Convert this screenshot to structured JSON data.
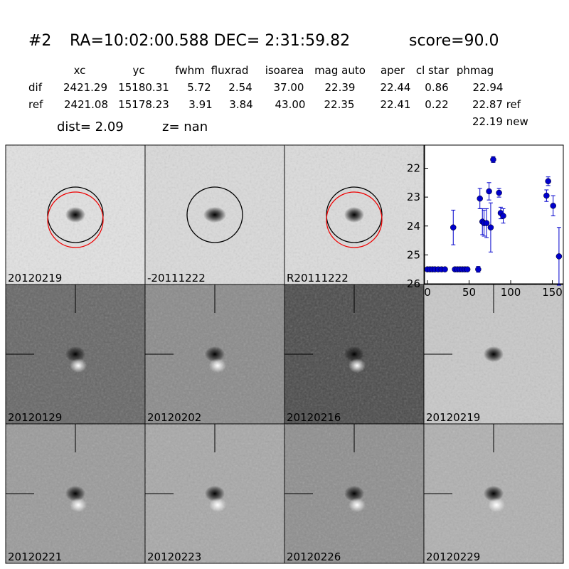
{
  "header": {
    "id": "#2",
    "coords": "RA=10:02:00.588 DEC= 2:31:59.82",
    "score": "score=90.0"
  },
  "table": {
    "columns": [
      "xc",
      "yc",
      "fwhm",
      "fluxrad",
      "isoarea",
      "mag auto",
      "aper",
      "cl star",
      "phmag"
    ],
    "rows": [
      [
        "dif",
        "2421.29",
        "15180.31",
        "5.72",
        "2.54",
        "37.00",
        "22.39",
        "22.44",
        "0.86",
        "22.94"
      ],
      [
        "ref",
        "2421.08",
        "15178.23",
        "3.91",
        "3.84",
        "43.00",
        "22.35",
        "22.41",
        "0.22",
        "22.87 ref"
      ]
    ],
    "extra": "22.19 new",
    "dist": "dist=  2.09",
    "z": "z=   nan"
  },
  "stamps": [
    "20120219",
    "-20111222",
    "R20111222",
    "20120129",
    "20120202",
    "20120216",
    "20120219",
    "20120221",
    "20120223",
    "20120226",
    "20120229"
  ],
  "chart_data": {
    "type": "scatter",
    "color": "#0000cc",
    "x": [
      0,
      3,
      6,
      9,
      13,
      17,
      21,
      31,
      33,
      36,
      39,
      42,
      45,
      48,
      61,
      63,
      66,
      68,
      71,
      74,
      76,
      79,
      86,
      88,
      91,
      143,
      145,
      151,
      158
    ],
    "series": [
      {
        "values": [
          25.5,
          25.5,
          25.5,
          25.5,
          25.5,
          25.5,
          25.5,
          24.05,
          25.5,
          25.5,
          25.5,
          25.5,
          25.5,
          25.5,
          25.5,
          23.05,
          23.85,
          23.9,
          23.9,
          22.8,
          24.05,
          21.7,
          22.85,
          23.55,
          23.65,
          22.95,
          22.45,
          23.3,
          25.05
        ],
        "errors": [
          0,
          0,
          0,
          0,
          0,
          0,
          0,
          0.6,
          0,
          0,
          0,
          0,
          0,
          0,
          0.1,
          0.35,
          0.45,
          0.45,
          0.5,
          0.3,
          0.85,
          0.1,
          0.15,
          0.2,
          0.25,
          0.2,
          0.15,
          0.35,
          1.0
        ]
      }
    ],
    "xlim": [
      -3.4,
      163.2
    ],
    "ylim": [
      21.2,
      26
    ],
    "inverted_y": true,
    "xticks": [
      0,
      50,
      100,
      150
    ],
    "yticks": [
      22,
      23,
      24,
      25,
      26
    ]
  }
}
